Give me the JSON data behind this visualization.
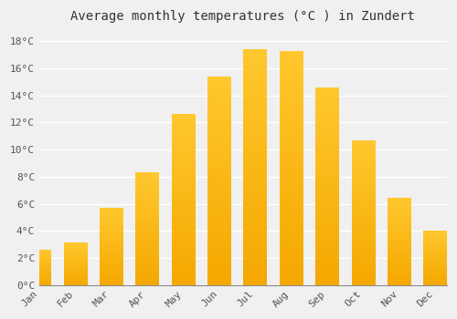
{
  "title": "Average monthly temperatures (°C ) in Zundert",
  "months": [
    "Jan",
    "Feb",
    "Mar",
    "Apr",
    "May",
    "Jun",
    "Jul",
    "Aug",
    "Sep",
    "Oct",
    "Nov",
    "Dec"
  ],
  "values": [
    2.6,
    3.1,
    5.7,
    8.3,
    12.6,
    15.4,
    17.4,
    17.3,
    14.6,
    10.7,
    6.4,
    4.0
  ],
  "bar_color_top": "#FFC82E",
  "bar_color_bottom": "#F5A800",
  "background_color": "#F0F0F0",
  "grid_color": "#FFFFFF",
  "ylim": [
    0,
    19
  ],
  "yticks": [
    0,
    2,
    4,
    6,
    8,
    10,
    12,
    14,
    16,
    18
  ],
  "title_fontsize": 10,
  "tick_fontsize": 8,
  "tick_font_family": "monospace",
  "bar_width": 0.65
}
